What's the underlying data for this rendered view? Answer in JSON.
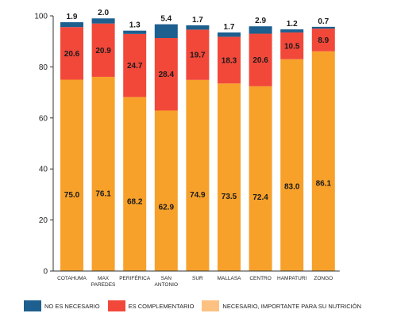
{
  "chart_data": {
    "type": "bar",
    "stacked": true,
    "title": "",
    "xlabel": "",
    "ylabel": "",
    "ylim": [
      0,
      100
    ],
    "yticks": [
      0,
      20,
      40,
      60,
      80,
      100
    ],
    "categories": [
      [
        "COTAHUMA"
      ],
      [
        "MAX",
        "PAREDES"
      ],
      [
        "PERIFÉRICA"
      ],
      [
        "SAN",
        "ANTONIO"
      ],
      [
        "SUR"
      ],
      [
        "MALLASA"
      ],
      [
        "CENTRO"
      ],
      [
        "HAMPATURI"
      ],
      [
        "ZONGO"
      ]
    ],
    "series": [
      {
        "name": "NECESARIO, IMPORTANTE PARA SU NUTRICIÓN",
        "color": "#F7A12B",
        "values": [
          75.0,
          76.1,
          68.2,
          62.9,
          74.9,
          73.5,
          72.4,
          83.0,
          86.1
        ],
        "labels": [
          "75.0",
          "76.1",
          "68.2",
          "62.9",
          "74.9",
          "73.5",
          "72.4",
          "83.0",
          "86.1"
        ]
      },
      {
        "name": "ES COMPLEMENTARIO",
        "color": "#F2483A",
        "values": [
          20.6,
          20.9,
          24.7,
          28.4,
          19.7,
          18.3,
          20.6,
          10.5,
          8.9
        ],
        "labels": [
          "20.6",
          "20.9",
          "24.7",
          "28.4",
          "19.7",
          "18.3",
          "20.6",
          "10.5",
          "8.9"
        ]
      },
      {
        "name": "NO ES NECESARIO",
        "color": "#1D5F8E",
        "values": [
          1.9,
          2.0,
          1.3,
          5.4,
          1.7,
          1.7,
          2.9,
          1.2,
          0.7
        ],
        "labels": [
          "1.9",
          "2.0",
          "1.3",
          "5.4",
          "1.7",
          "1.7",
          "2.9",
          "1.2",
          "0.7"
        ]
      }
    ],
    "legend": {
      "position": "bottom",
      "items": [
        {
          "label": "NO ES NECESARIO",
          "color": "#1D5F8E"
        },
        {
          "label": "ES COMPLEMENTARIO",
          "color": "#F2483A"
        },
        {
          "label": "NECESARIO, IMPORTANTE PARA SU NUTRICIÓN",
          "color": "#FDC182"
        }
      ]
    },
    "grid": false
  }
}
